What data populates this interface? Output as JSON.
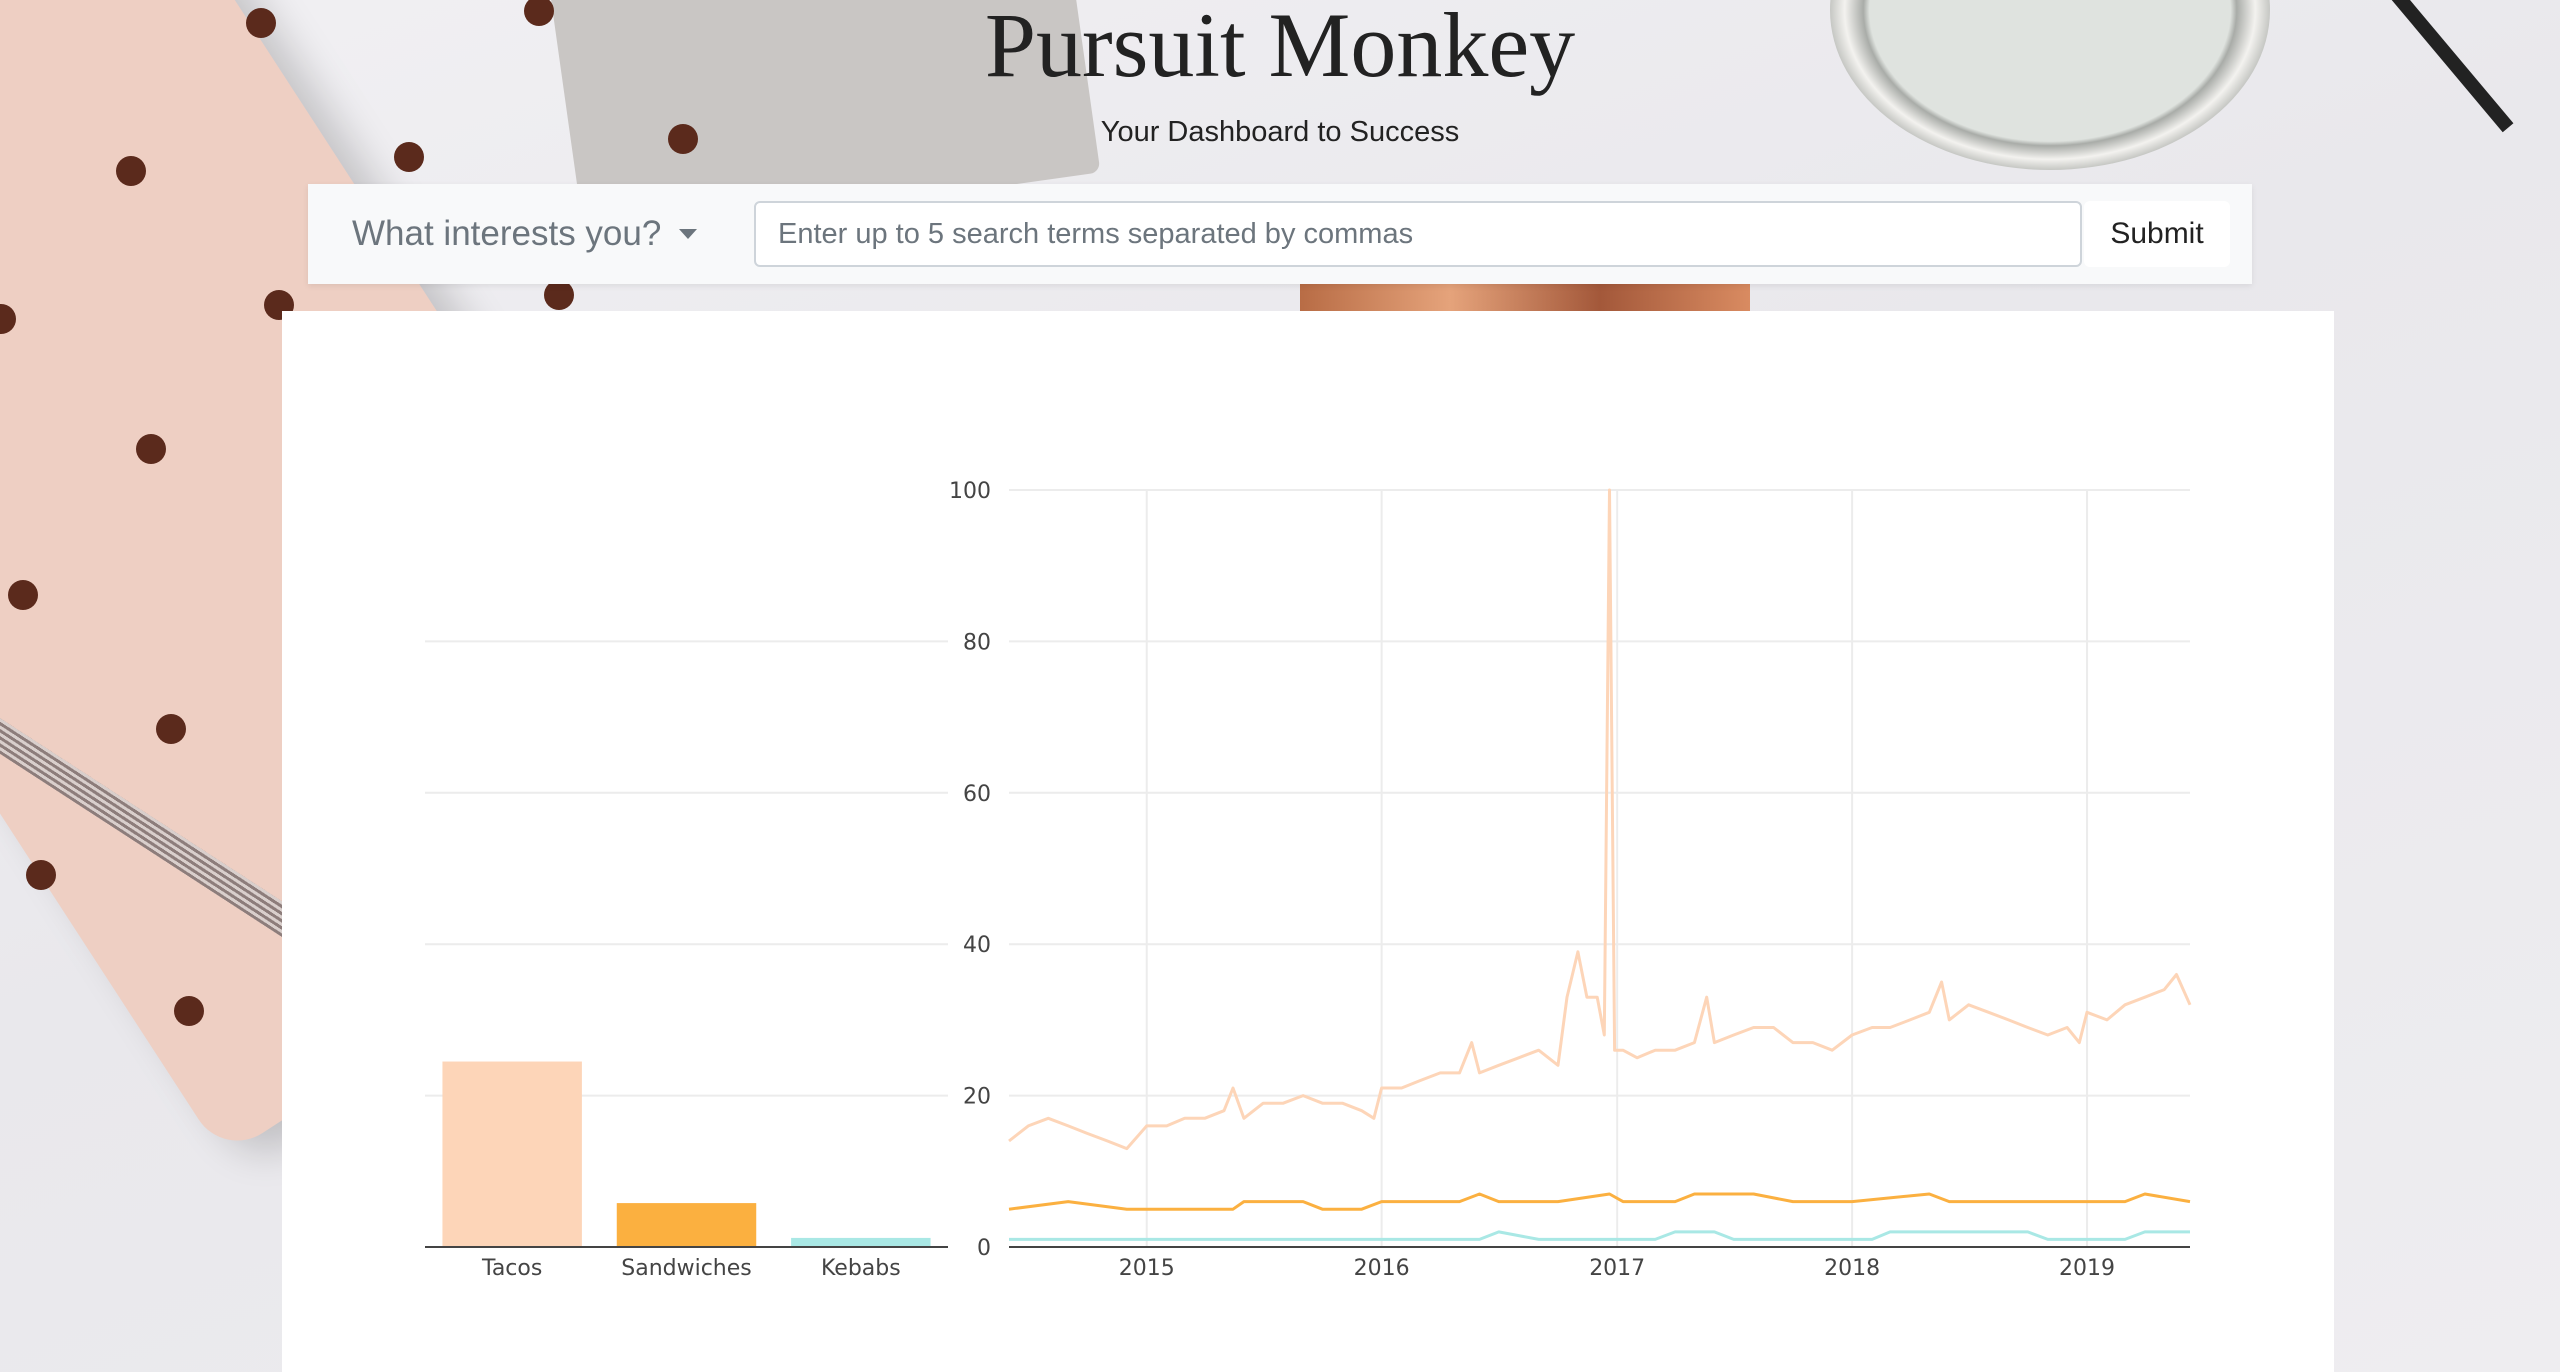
{
  "header": {
    "title": "Pursuit Monkey",
    "subtitle": "Your Dashboard to Success"
  },
  "search": {
    "dropdown_label": "What interests you?",
    "input_value": "",
    "placeholder": "Enter up to 5 search terms separated by commas",
    "submit_label": "Submit"
  },
  "colors": {
    "tacos": "#fdd5b8",
    "sandwiches": "#fbb040",
    "kebabs": "#a9e8e5"
  },
  "chart_data": [
    {
      "type": "bar",
      "categories": [
        "Tacos",
        "Sandwiches",
        "Kebabs"
      ],
      "values": [
        24.5,
        5.8,
        1.2
      ],
      "ylim": [
        0,
        100
      ],
      "grid": true
    },
    {
      "type": "line",
      "x_ticks": [
        "2015",
        "2016",
        "2017",
        "2018",
        "2019"
      ],
      "y_ticks": [
        "0",
        "20",
        "40",
        "60",
        "80",
        "100"
      ],
      "ylim": [
        0,
        100
      ],
      "xlim": [
        "2014-06-01",
        "2019-06-10"
      ],
      "grid": true,
      "series": [
        {
          "key": "tacos",
          "points": [
            [
              "2014-06-01",
              14
            ],
            [
              "2014-07-01",
              16
            ],
            [
              "2014-08-01",
              17
            ],
            [
              "2014-09-01",
              16
            ],
            [
              "2014-10-01",
              15
            ],
            [
              "2014-11-01",
              14
            ],
            [
              "2014-12-01",
              13
            ],
            [
              "2015-01-01",
              16
            ],
            [
              "2015-02-01",
              16
            ],
            [
              "2015-03-01",
              17
            ],
            [
              "2015-04-01",
              17
            ],
            [
              "2015-05-01",
              18
            ],
            [
              "2015-05-15",
              21
            ],
            [
              "2015-06-01",
              17
            ],
            [
              "2015-07-01",
              19
            ],
            [
              "2015-08-01",
              19
            ],
            [
              "2015-09-01",
              20
            ],
            [
              "2015-10-01",
              19
            ],
            [
              "2015-11-01",
              19
            ],
            [
              "2015-12-01",
              18
            ],
            [
              "2015-12-20",
              17
            ],
            [
              "2016-01-01",
              21
            ],
            [
              "2016-02-01",
              21
            ],
            [
              "2016-03-01",
              22
            ],
            [
              "2016-04-01",
              23
            ],
            [
              "2016-05-01",
              23
            ],
            [
              "2016-05-20",
              27
            ],
            [
              "2016-06-01",
              23
            ],
            [
              "2016-07-01",
              24
            ],
            [
              "2016-08-01",
              25
            ],
            [
              "2016-09-01",
              26
            ],
            [
              "2016-10-01",
              24
            ],
            [
              "2016-10-15",
              33
            ],
            [
              "2016-11-01",
              39
            ],
            [
              "2016-11-15",
              33
            ],
            [
              "2016-12-01",
              33
            ],
            [
              "2016-12-12",
              28
            ],
            [
              "2016-12-20",
              100
            ],
            [
              "2016-12-28",
              26
            ],
            [
              "2017-01-10",
              26
            ],
            [
              "2017-02-01",
              25
            ],
            [
              "2017-03-01",
              26
            ],
            [
              "2017-04-01",
              26
            ],
            [
              "2017-05-01",
              27
            ],
            [
              "2017-05-20",
              33
            ],
            [
              "2017-06-01",
              27
            ],
            [
              "2017-07-01",
              28
            ],
            [
              "2017-08-01",
              29
            ],
            [
              "2017-09-01",
              29
            ],
            [
              "2017-10-01",
              27
            ],
            [
              "2017-11-01",
              27
            ],
            [
              "2017-12-01",
              26
            ],
            [
              "2018-01-01",
              28
            ],
            [
              "2018-02-01",
              29
            ],
            [
              "2018-03-01",
              29
            ],
            [
              "2018-04-01",
              30
            ],
            [
              "2018-05-01",
              31
            ],
            [
              "2018-05-20",
              35
            ],
            [
              "2018-06-01",
              30
            ],
            [
              "2018-07-01",
              32
            ],
            [
              "2018-08-01",
              31
            ],
            [
              "2018-09-01",
              30
            ],
            [
              "2018-10-01",
              29
            ],
            [
              "2018-11-01",
              28
            ],
            [
              "2018-12-01",
              29
            ],
            [
              "2018-12-20",
              27
            ],
            [
              "2019-01-01",
              31
            ],
            [
              "2019-02-01",
              30
            ],
            [
              "2019-03-01",
              32
            ],
            [
              "2019-04-01",
              33
            ],
            [
              "2019-05-01",
              34
            ],
            [
              "2019-05-20",
              36
            ],
            [
              "2019-06-10",
              32
            ]
          ]
        },
        {
          "key": "sandwiches",
          "points": [
            [
              "2014-06-01",
              5
            ],
            [
              "2014-09-01",
              6
            ],
            [
              "2014-12-01",
              5
            ],
            [
              "2015-03-01",
              5
            ],
            [
              "2015-05-15",
              5
            ],
            [
              "2015-06-01",
              6
            ],
            [
              "2015-09-01",
              6
            ],
            [
              "2015-10-01",
              5
            ],
            [
              "2015-12-01",
              5
            ],
            [
              "2016-01-01",
              6
            ],
            [
              "2016-05-01",
              6
            ],
            [
              "2016-06-01",
              7
            ],
            [
              "2016-07-01",
              6
            ],
            [
              "2016-10-01",
              6
            ],
            [
              "2016-12-20",
              7
            ],
            [
              "2017-01-10",
              6
            ],
            [
              "2017-04-01",
              6
            ],
            [
              "2017-05-01",
              7
            ],
            [
              "2017-08-01",
              7
            ],
            [
              "2017-10-01",
              6
            ],
            [
              "2018-01-01",
              6
            ],
            [
              "2018-05-01",
              7
            ],
            [
              "2018-06-01",
              6
            ],
            [
              "2018-10-01",
              6
            ],
            [
              "2018-12-01",
              6
            ],
            [
              "2019-01-01",
              6
            ],
            [
              "2019-03-01",
              6
            ],
            [
              "2019-04-01",
              7
            ],
            [
              "2019-06-10",
              6
            ]
          ]
        },
        {
          "key": "kebabs",
          "points": [
            [
              "2014-06-01",
              1
            ],
            [
              "2015-06-01",
              1
            ],
            [
              "2016-06-01",
              1
            ],
            [
              "2016-07-01",
              2
            ],
            [
              "2016-09-01",
              1
            ],
            [
              "2017-03-01",
              1
            ],
            [
              "2017-04-01",
              2
            ],
            [
              "2017-06-01",
              2
            ],
            [
              "2017-07-01",
              1
            ],
            [
              "2018-02-01",
              1
            ],
            [
              "2018-03-01",
              2
            ],
            [
              "2018-10-01",
              2
            ],
            [
              "2018-11-01",
              1
            ],
            [
              "2019-03-01",
              1
            ],
            [
              "2019-04-01",
              2
            ],
            [
              "2019-06-10",
              2
            ]
          ]
        }
      ]
    }
  ]
}
